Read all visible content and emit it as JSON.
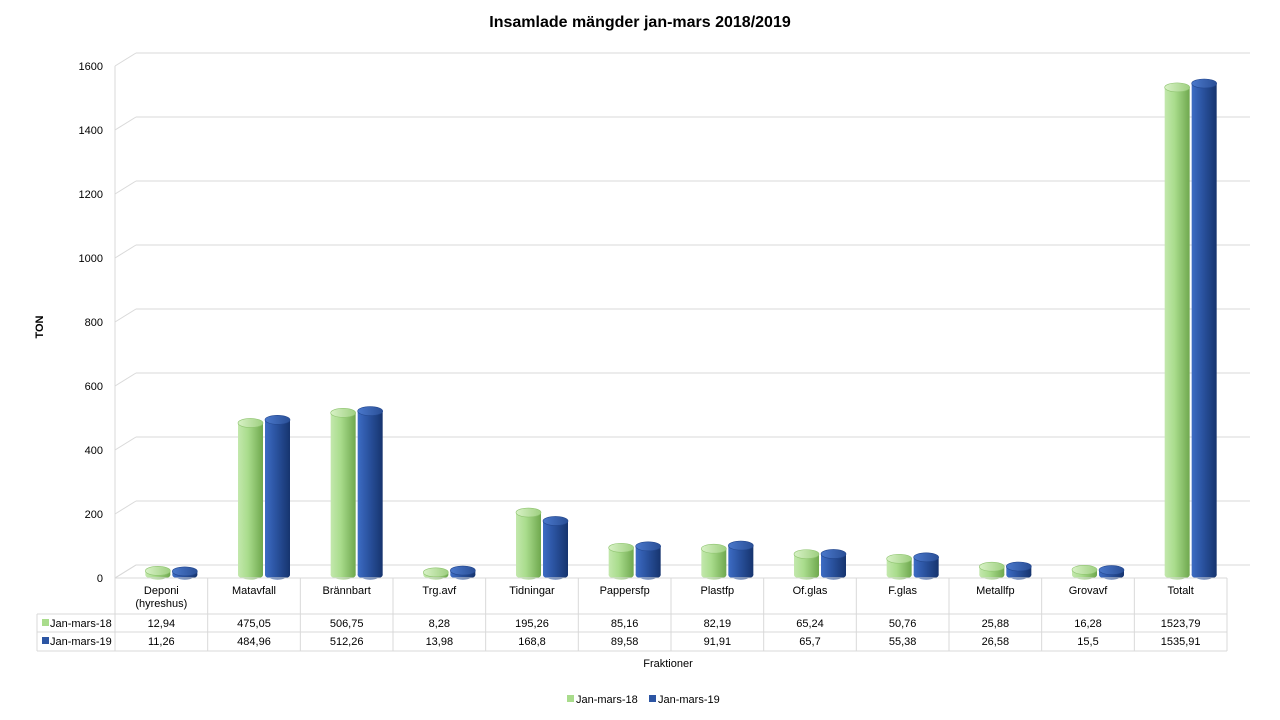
{
  "chart_data": {
    "type": "bar",
    "title": "Insamlade mängder jan-mars 2018/2019",
    "xlabel": "Fraktioner",
    "ylabel": "TON",
    "ylim": [
      0,
      1600
    ],
    "yticks": [
      0,
      200,
      400,
      600,
      800,
      1000,
      1200,
      1400,
      1600
    ],
    "grid": true,
    "legend_position": "bottom",
    "categories": [
      "Deponi (hyreshus)",
      "Matavfall",
      "Brännbart",
      "Trg.avf",
      "Tidningar",
      "Pappersfp",
      "Plastfp",
      "Of.glas",
      "F.glas",
      "Metallfp",
      "Grovavf",
      "Totalt"
    ],
    "category_lines": [
      [
        "Deponi",
        "(hyreshus)"
      ],
      [
        "Matavfall"
      ],
      [
        "Brännbart"
      ],
      [
        "Trg.avf"
      ],
      [
        "Tidningar"
      ],
      [
        "Pappersfp"
      ],
      [
        "Plastfp"
      ],
      [
        "Of.glas"
      ],
      [
        "F.glas"
      ],
      [
        "Metallfp"
      ],
      [
        "Grovavf"
      ],
      [
        "Totalt"
      ]
    ],
    "series": [
      {
        "name": "Jan-mars-18",
        "color": "#a9dc8c",
        "values": [
          12.94,
          475.05,
          506.75,
          8.28,
          195.26,
          85.16,
          82.19,
          65.24,
          50.76,
          25.88,
          16.28,
          1523.79
        ],
        "labels": [
          "12,94",
          "475,05",
          "506,75",
          "8,28",
          "195,26",
          "85,16",
          "82,19",
          "65,24",
          "50,76",
          "25,88",
          "16,28",
          "1523,79"
        ]
      },
      {
        "name": "Jan-mars-19",
        "color": "#2c55a3",
        "values": [
          11.26,
          484.96,
          512.26,
          13.98,
          168.8,
          89.58,
          91.91,
          65.7,
          55.38,
          26.58,
          15.5,
          1535.91
        ],
        "labels": [
          "11,26",
          "484,96",
          "512,26",
          "13,98",
          "168,8",
          "89,58",
          "91,91",
          "65,7",
          "55,38",
          "26,58",
          "15,5",
          "1535,91"
        ]
      }
    ]
  }
}
